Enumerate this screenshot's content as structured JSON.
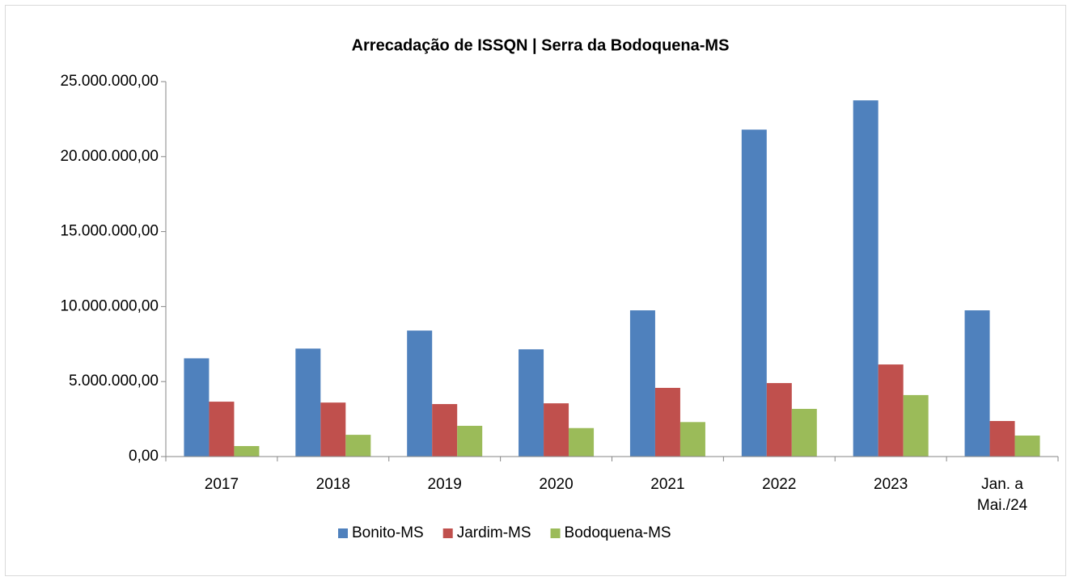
{
  "chart_data": {
    "type": "bar",
    "title": "Arrecadação de ISSQN | Serra da Bodoquena-MS",
    "categories": [
      "2017",
      "2018",
      "2019",
      "2020",
      "2021",
      "2022",
      "2023",
      "Jan. a Mai./24"
    ],
    "series": [
      {
        "name": "Bonito-MS",
        "color": "#4f81bd",
        "values": [
          6550000,
          7200000,
          8400000,
          7150000,
          9750000,
          21800000,
          23750000,
          9750000
        ]
      },
      {
        "name": "Jardim-MS",
        "color": "#c0504d",
        "values": [
          3660000,
          3600000,
          3500000,
          3550000,
          4580000,
          4900000,
          6140000,
          2370000
        ]
      },
      {
        "name": "Bodoquena-MS",
        "color": "#9bbb59",
        "values": [
          700000,
          1450000,
          2050000,
          1900000,
          2300000,
          3180000,
          4100000,
          1400000
        ]
      }
    ],
    "ylim": [
      0,
      25000000
    ],
    "yticks": [
      {
        "value": 0,
        "label": "0,00"
      },
      {
        "value": 5000000,
        "label": "5.000.000,00"
      },
      {
        "value": 10000000,
        "label": "10.000.000,00"
      },
      {
        "value": 15000000,
        "label": "15.000.000,00"
      },
      {
        "value": 20000000,
        "label": "20.000.000,00"
      },
      {
        "value": 25000000,
        "label": "25.000.000,00"
      }
    ],
    "grid": false,
    "legend": "bottom"
  }
}
